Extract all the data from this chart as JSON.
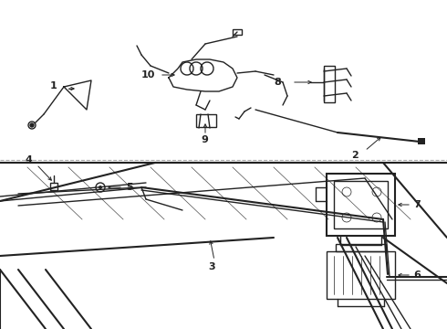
{
  "bg_color": "#ffffff",
  "line_color": "#222222",
  "lw": 1.0,
  "lw_thin": 0.5,
  "lw_thick": 1.5,
  "font_size": 8
}
